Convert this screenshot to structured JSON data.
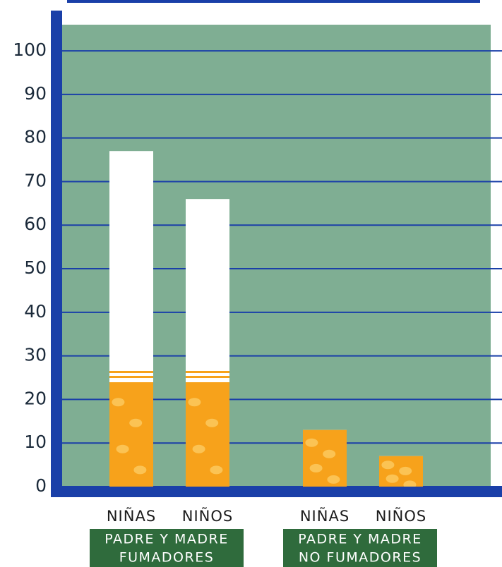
{
  "chart_data": {
    "type": "bar",
    "categories": [
      "NIÑAS",
      "NIÑOS",
      "NIÑAS",
      "NIÑOS"
    ],
    "values": [
      77,
      66,
      13,
      7
    ],
    "groups": [
      {
        "lines": [
          "PADRE Y MADRE",
          "FUMADORES"
        ]
      },
      {
        "lines": [
          "PADRE Y MADRE",
          "NO FUMADORES"
        ]
      }
    ],
    "color": "#ffffff",
    "filter_color": "#f7a21b",
    "ylim": [
      0,
      106
    ],
    "yticks": [
      0,
      10,
      20,
      30,
      40,
      50,
      60,
      70,
      80,
      90,
      100
    ],
    "grid": true
  }
}
